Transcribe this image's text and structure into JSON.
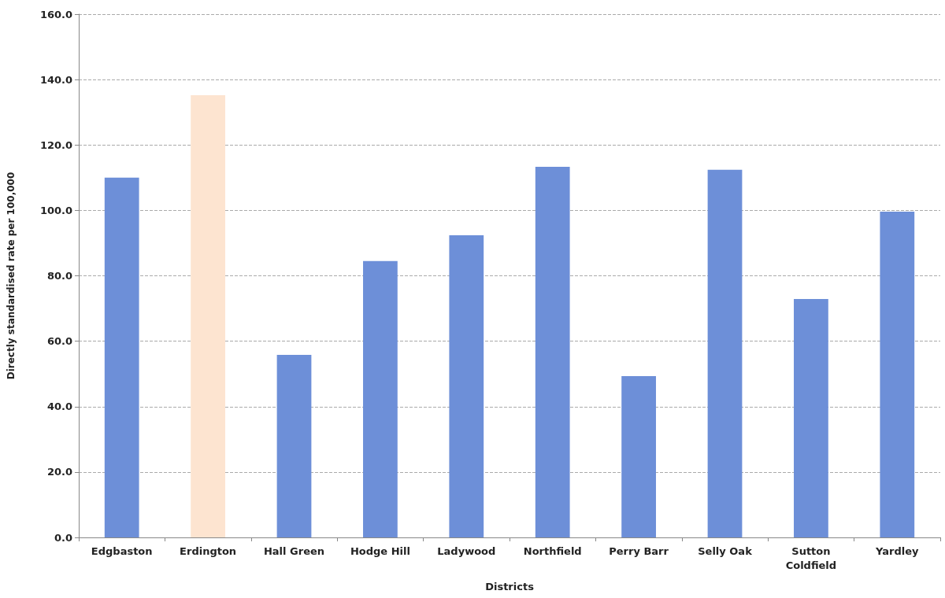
{
  "chart_data": {
    "type": "bar",
    "categories": [
      "Edgbaston",
      "Erdington",
      "Hall Green",
      "Hodge Hill",
      "Ladywood",
      "Northfield",
      "Perry Barr",
      "Selly Oak",
      "Sutton\nColdfield",
      "Yardley"
    ],
    "values": [
      110.0,
      135.2,
      55.8,
      84.5,
      92.4,
      113.3,
      49.3,
      112.4,
      72.9,
      99.6
    ],
    "colors": [
      "#6d8fd8",
      "#fde4d0",
      "#6d8fd8",
      "#6d8fd8",
      "#6d8fd8",
      "#6d8fd8",
      "#6d8fd8",
      "#6d8fd8",
      "#6d8fd8",
      "#6d8fd8"
    ],
    "xlabel": "Districts",
    "ylabel": "Directly standardised rate per 100,000",
    "ylim": [
      0,
      160
    ],
    "yticks": [
      {
        "value": 0,
        "label": "0.0"
      },
      {
        "value": 20,
        "label": "20.0"
      },
      {
        "value": 40,
        "label": "40.0"
      },
      {
        "value": 60,
        "label": "60.0"
      },
      {
        "value": 80,
        "label": "80.0"
      },
      {
        "value": 100,
        "label": "100.0"
      },
      {
        "value": 120,
        "label": "120.0"
      },
      {
        "value": 140,
        "label": "140.0"
      },
      {
        "value": 160,
        "label": "160.0"
      }
    ],
    "grid": "y"
  }
}
